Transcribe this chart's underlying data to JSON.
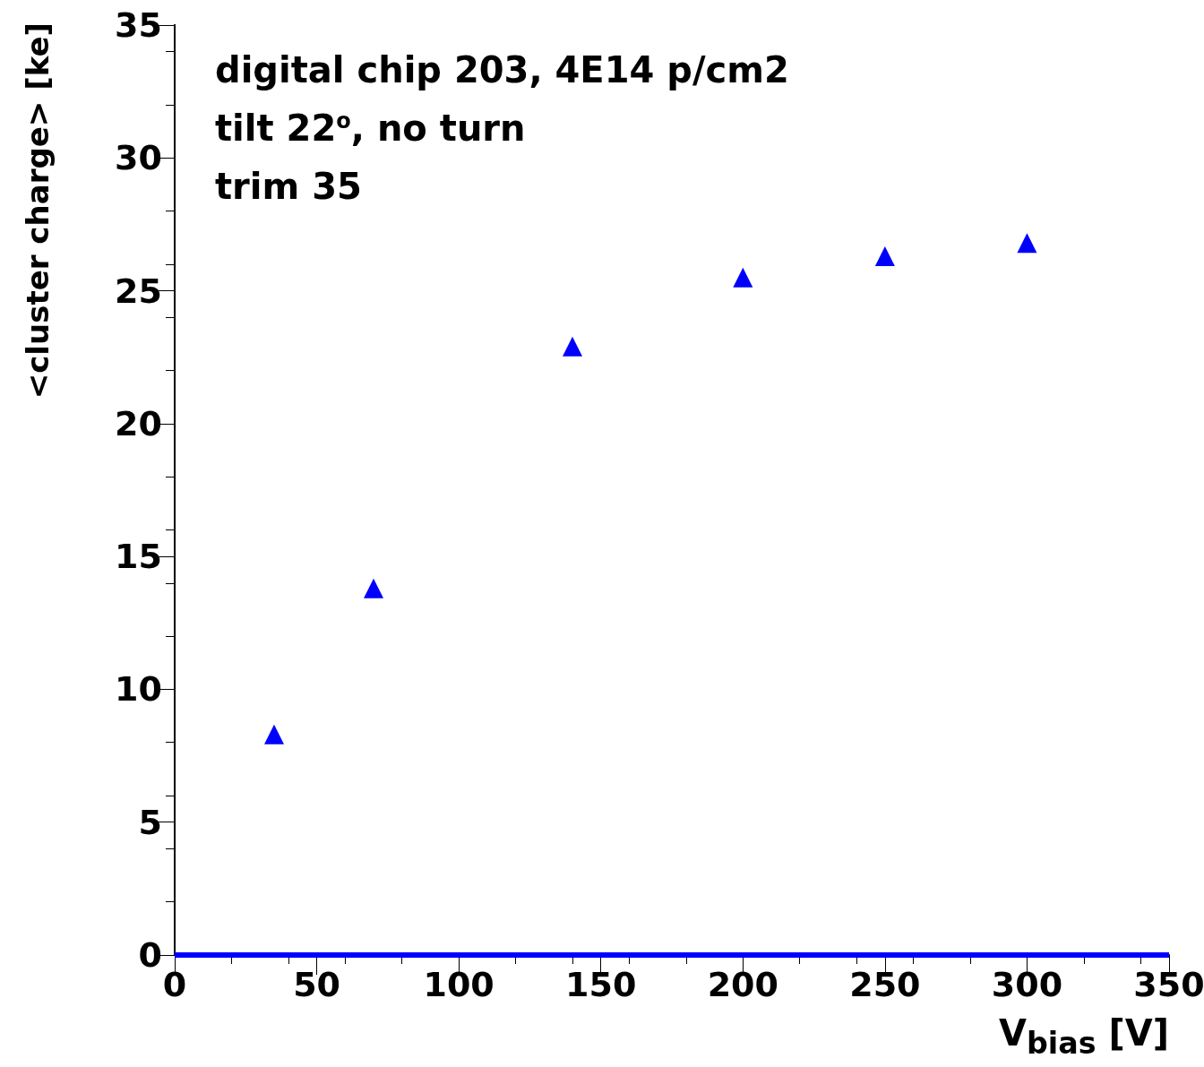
{
  "chart_data": {
    "type": "scatter",
    "xlabel": "V$_{bias}$ [V]",
    "ylabel": "<cluster charge> [ke]",
    "annotations": [
      "digital chip 203, 4E14 p/cm2",
      "tilt 22$^{o}$, no turn",
      "trim 35"
    ],
    "x": [
      35,
      70,
      140,
      200,
      250,
      300
    ],
    "series": [
      {
        "color": "#0000ff",
        "values": [
          8.3,
          13.8,
          22.9,
          25.5,
          26.3,
          26.8
        ]
      }
    ],
    "xlim": [
      0,
      350
    ],
    "xticks": [
      0,
      50,
      100,
      150,
      200,
      250,
      300,
      350
    ],
    "ylim": [
      0,
      35
    ],
    "yticks": [
      0,
      5,
      10,
      15,
      20,
      25,
      30,
      35
    ],
    "ref_lines": [
      {
        "axis": "y",
        "value": 0,
        "color": "#0000ff"
      }
    ],
    "marker": "triangle",
    "grid": false
  }
}
